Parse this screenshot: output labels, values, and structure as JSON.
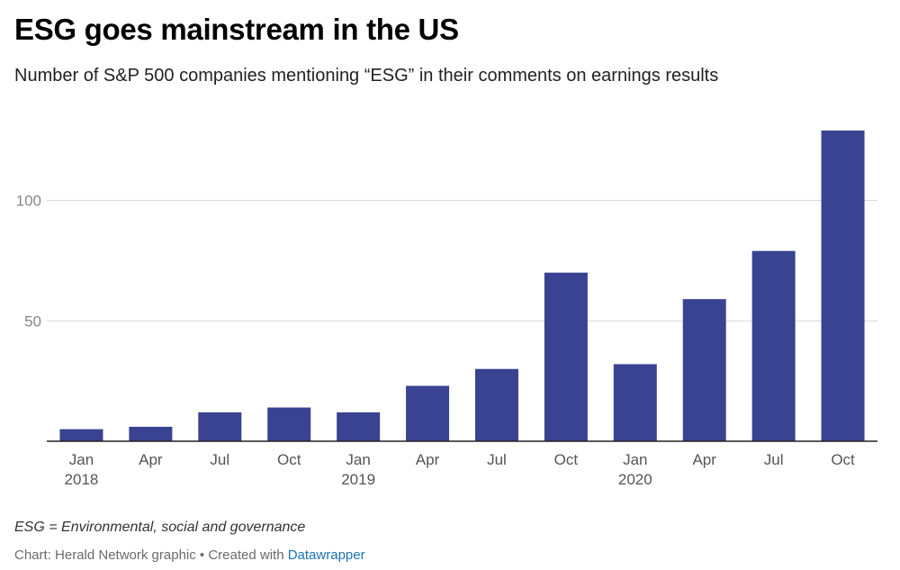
{
  "title": "ESG goes mainstream in the US",
  "subtitle": "Number of S&P 500 companies mentioning “ESG” in their comments on earnings results",
  "note": "ESG = Environmental, social and governance",
  "footer": {
    "prefix": "Chart: Herald Network graphic • Created with ",
    "link_text": "Datawrapper"
  },
  "colors": {
    "bar": "#3a4391",
    "grid": "#d9d9d9",
    "axis": "#222222"
  },
  "chart_data": {
    "type": "bar",
    "categories": [
      {
        "month": "Jan",
        "year": "2018"
      },
      {
        "month": "Apr",
        "year": ""
      },
      {
        "month": "Jul",
        "year": ""
      },
      {
        "month": "Oct",
        "year": ""
      },
      {
        "month": "Jan",
        "year": "2019"
      },
      {
        "month": "Apr",
        "year": ""
      },
      {
        "month": "Jul",
        "year": ""
      },
      {
        "month": "Oct",
        "year": ""
      },
      {
        "month": "Jan",
        "year": "2020"
      },
      {
        "month": "Apr",
        "year": ""
      },
      {
        "month": "Jul",
        "year": ""
      },
      {
        "month": "Oct",
        "year": ""
      }
    ],
    "values": [
      5,
      6,
      12,
      14,
      12,
      23,
      30,
      70,
      32,
      59,
      79,
      129
    ],
    "ylim": [
      0,
      135
    ],
    "yticks": [
      50,
      100
    ],
    "grid": true
  }
}
